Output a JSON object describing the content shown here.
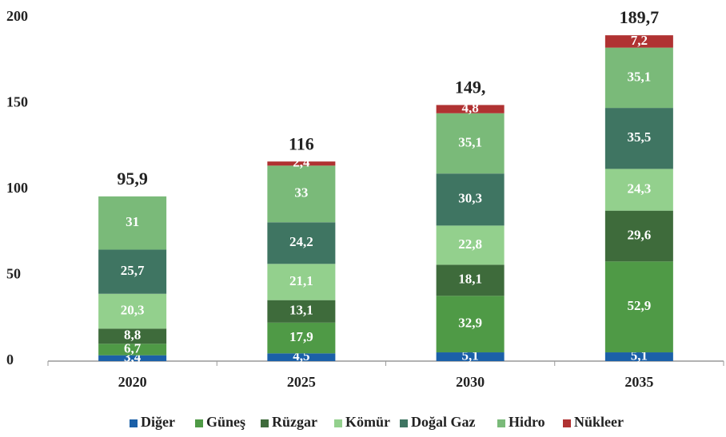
{
  "chart_data": {
    "type": "stacked_bar",
    "categories": [
      "2020",
      "2025",
      "2030",
      "2035"
    ],
    "series": [
      {
        "name": "Diğer",
        "color": "#1b60a8",
        "values": [
          3.4,
          4.5,
          5.1,
          5.1
        ],
        "value_labels": [
          "3,4",
          "4,5",
          "5,1",
          "5,1"
        ]
      },
      {
        "name": "Güneş",
        "color": "#4f9a46",
        "values": [
          6.7,
          17.9,
          32.9,
          52.9
        ],
        "value_labels": [
          "6,7",
          "17,9",
          "32,9",
          "52,9"
        ]
      },
      {
        "name": "Rüzgar",
        "color": "#3e6b3b",
        "values": [
          8.8,
          13.1,
          18.1,
          29.6
        ],
        "value_labels": [
          "8,8",
          "13,1",
          "18,1",
          "29,6"
        ]
      },
      {
        "name": "Kömür",
        "color": "#93d08d",
        "values": [
          20.3,
          21.1,
          22.8,
          24.3
        ],
        "value_labels": [
          "20,3",
          "21,1",
          "22,8",
          "24,3"
        ]
      },
      {
        "name": "Doğal Gaz",
        "color": "#3f7562",
        "values": [
          25.7,
          24.2,
          30.3,
          35.5
        ],
        "value_labels": [
          "25,7",
          "24,2",
          "30,3",
          "35,5"
        ]
      },
      {
        "name": "Hidro",
        "color": "#7aba79",
        "values": [
          31,
          33,
          35.1,
          35.1
        ],
        "value_labels": [
          "31",
          "33",
          "35,1",
          "35,1"
        ]
      },
      {
        "name": "Nükleer",
        "color": "#b03232",
        "values": [
          null,
          2.4,
          4.8,
          7.2
        ],
        "value_labels": [
          null,
          "2,4",
          "4,8",
          "7,2"
        ]
      }
    ],
    "totals": [
      95.9,
      116,
      149,
      189.7
    ],
    "total_labels": [
      "95,9",
      "116",
      "149,",
      "189,7"
    ],
    "ylim": [
      0,
      200
    ],
    "yticks": [
      0,
      50,
      100,
      150,
      200
    ],
    "grid": false,
    "legend": "bottom"
  }
}
